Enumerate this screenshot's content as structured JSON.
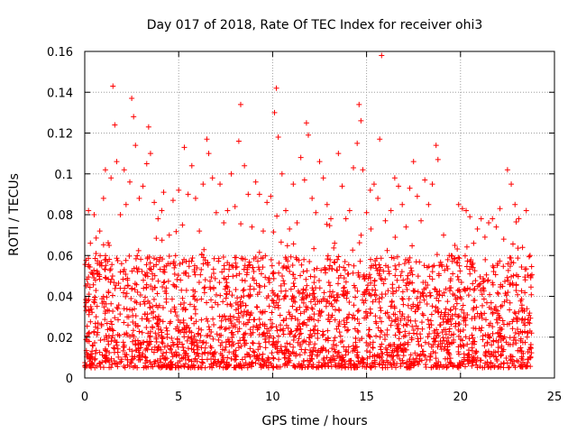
{
  "chart_data": {
    "type": "scatter",
    "title": "Day 017 of 2018, Rate Of TEC Index for receiver ohi3",
    "xlabel": "GPS time / hours",
    "ylabel": "ROTI / TECUs",
    "xlim": [
      0,
      25
    ],
    "ylim": [
      0,
      0.16
    ],
    "x_ticks": [
      0,
      5,
      10,
      15,
      20,
      25
    ],
    "x_tick_labels": [
      "0",
      "5",
      "10",
      "15",
      "20",
      "25"
    ],
    "y_ticks": [
      0,
      0.02,
      0.04,
      0.06,
      0.08,
      0.1,
      0.12,
      0.14,
      0.16
    ],
    "y_tick_labels": [
      "0",
      "0.02",
      "0.04",
      "0.06",
      "0.08",
      "0.1",
      "0.12",
      "0.14",
      "0.16"
    ],
    "grid": true,
    "marker": "+",
    "color": "#ff0000",
    "series": [
      {
        "name": "",
        "summary": "ROTI values dense between 0.005 and 0.06 TECU/min from 0 to 24 h; frequent excursions to 0.08-0.10, isolated peaks up to 0.16",
        "points": [
          [
            0.05,
            0.035
          ],
          [
            0.2,
            0.082
          ],
          [
            0.3,
            0.066
          ],
          [
            0.5,
            0.08
          ],
          [
            0.6,
            0.061
          ],
          [
            0.8,
            0.072
          ],
          [
            1.0,
            0.088
          ],
          [
            1.1,
            0.102
          ],
          [
            1.3,
            0.065
          ],
          [
            1.4,
            0.098
          ],
          [
            1.5,
            0.143
          ],
          [
            1.6,
            0.124
          ],
          [
            1.7,
            0.106
          ],
          [
            1.9,
            0.08
          ],
          [
            2.1,
            0.102
          ],
          [
            2.2,
            0.085
          ],
          [
            2.4,
            0.096
          ],
          [
            2.5,
            0.137
          ],
          [
            2.6,
            0.128
          ],
          [
            2.7,
            0.114
          ],
          [
            2.9,
            0.088
          ],
          [
            3.1,
            0.094
          ],
          [
            3.3,
            0.105
          ],
          [
            3.4,
            0.123
          ],
          [
            3.5,
            0.11
          ],
          [
            3.7,
            0.086
          ],
          [
            3.9,
            0.078
          ],
          [
            4.1,
            0.082
          ],
          [
            4.2,
            0.091
          ],
          [
            4.5,
            0.07
          ],
          [
            4.7,
            0.087
          ],
          [
            5.0,
            0.092
          ],
          [
            5.2,
            0.075
          ],
          [
            5.3,
            0.113
          ],
          [
            5.5,
            0.09
          ],
          [
            5.7,
            0.104
          ],
          [
            5.9,
            0.088
          ],
          [
            6.1,
            0.072
          ],
          [
            6.3,
            0.095
          ],
          [
            6.5,
            0.117
          ],
          [
            6.6,
            0.11
          ],
          [
            6.8,
            0.098
          ],
          [
            7.0,
            0.081
          ],
          [
            7.2,
            0.095
          ],
          [
            7.4,
            0.076
          ],
          [
            7.6,
            0.082
          ],
          [
            7.8,
            0.1
          ],
          [
            8.0,
            0.084
          ],
          [
            8.2,
            0.116
          ],
          [
            8.3,
            0.134
          ],
          [
            8.5,
            0.104
          ],
          [
            8.7,
            0.09
          ],
          [
            8.9,
            0.074
          ],
          [
            9.1,
            0.096
          ],
          [
            9.3,
            0.09
          ],
          [
            9.5,
            0.072
          ],
          [
            9.7,
            0.086
          ],
          [
            9.9,
            0.089
          ],
          [
            10.1,
            0.13
          ],
          [
            10.2,
            0.142
          ],
          [
            10.3,
            0.118
          ],
          [
            10.5,
            0.1
          ],
          [
            10.7,
            0.082
          ],
          [
            10.9,
            0.073
          ],
          [
            11.1,
            0.095
          ],
          [
            11.3,
            0.076
          ],
          [
            11.5,
            0.108
          ],
          [
            11.7,
            0.097
          ],
          [
            11.8,
            0.125
          ],
          [
            11.9,
            0.119
          ],
          [
            12.1,
            0.088
          ],
          [
            12.3,
            0.081
          ],
          [
            12.5,
            0.106
          ],
          [
            12.7,
            0.098
          ],
          [
            12.9,
            0.085
          ],
          [
            13.1,
            0.078
          ],
          [
            13.3,
            0.066
          ],
          [
            13.5,
            0.11
          ],
          [
            13.7,
            0.094
          ],
          [
            13.9,
            0.078
          ],
          [
            14.1,
            0.082
          ],
          [
            14.3,
            0.103
          ],
          [
            14.5,
            0.115
          ],
          [
            14.6,
            0.134
          ],
          [
            14.7,
            0.126
          ],
          [
            14.8,
            0.102
          ],
          [
            15.0,
            0.081
          ],
          [
            15.2,
            0.092
          ],
          [
            15.4,
            0.095
          ],
          [
            15.6,
            0.088
          ],
          [
            15.7,
            0.117
          ],
          [
            15.8,
            0.158
          ],
          [
            16.0,
            0.077
          ],
          [
            16.3,
            0.082
          ],
          [
            16.5,
            0.098
          ],
          [
            16.7,
            0.094
          ],
          [
            16.9,
            0.085
          ],
          [
            17.1,
            0.074
          ],
          [
            17.3,
            0.093
          ],
          [
            17.5,
            0.106
          ],
          [
            17.7,
            0.089
          ],
          [
            17.9,
            0.077
          ],
          [
            18.1,
            0.097
          ],
          [
            18.3,
            0.085
          ],
          [
            18.5,
            0.095
          ],
          [
            18.7,
            0.114
          ],
          [
            18.8,
            0.107
          ],
          [
            19.1,
            0.07
          ],
          [
            19.4,
            0.06
          ],
          [
            19.7,
            0.065
          ],
          [
            19.9,
            0.085
          ],
          [
            20.1,
            0.083
          ],
          [
            20.3,
            0.082
          ],
          [
            20.5,
            0.079
          ],
          [
            20.7,
            0.066
          ],
          [
            20.9,
            0.073
          ],
          [
            21.1,
            0.078
          ],
          [
            21.3,
            0.069
          ],
          [
            21.5,
            0.076
          ],
          [
            21.7,
            0.078
          ],
          [
            21.9,
            0.074
          ],
          [
            22.1,
            0.083
          ],
          [
            22.3,
            0.068
          ],
          [
            22.5,
            0.102
          ],
          [
            22.7,
            0.095
          ],
          [
            22.9,
            0.085
          ],
          [
            23.1,
            0.078
          ],
          [
            23.3,
            0.064
          ],
          [
            23.5,
            0.082
          ],
          [
            23.7,
            0.06
          ]
        ]
      }
    ]
  }
}
